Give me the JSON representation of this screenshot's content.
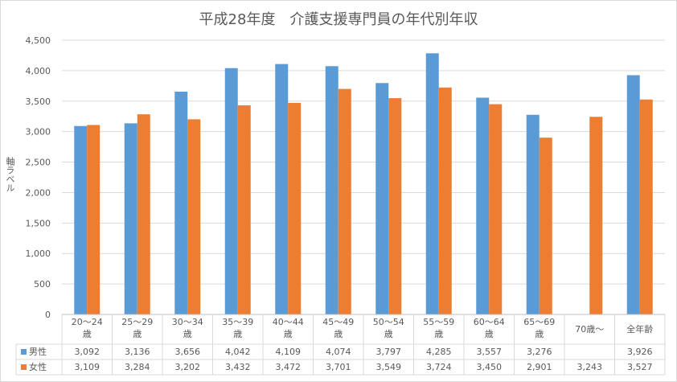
{
  "chart_data": {
    "type": "bar",
    "title": "平成28年度　介護支援専門員の年代別年収",
    "ylabel": "軸ラベル",
    "xlabel": "",
    "ylim": [
      0,
      4500
    ],
    "yticks": [
      "0",
      "500",
      "1,000",
      "1,500",
      "2,000",
      "2,500",
      "3,000",
      "3,500",
      "4,000",
      "4,500"
    ],
    "grid": true,
    "legend": "data-table",
    "categories": [
      [
        "20～24",
        "歳"
      ],
      [
        "25～29",
        "歳"
      ],
      [
        "30～34",
        "歳"
      ],
      [
        "35～39",
        "歳"
      ],
      [
        "40～44",
        "歳"
      ],
      [
        "45～49",
        "歳"
      ],
      [
        "50～54",
        "歳"
      ],
      [
        "55～59",
        "歳"
      ],
      [
        "60～64",
        "歳"
      ],
      [
        "65～69",
        "歳"
      ],
      [
        "70歳～"
      ],
      [
        "全年齢"
      ]
    ],
    "series": [
      {
        "name": "男性",
        "color": "#5b9bd5",
        "values": [
          3092,
          3136,
          3656,
          4042,
          4109,
          4074,
          3797,
          4285,
          3557,
          3276,
          null,
          3926
        ],
        "labels": [
          "3,092",
          "3,136",
          "3,656",
          "4,042",
          "4,109",
          "4,074",
          "3,797",
          "4,285",
          "3,557",
          "3,276",
          "",
          "3,926"
        ]
      },
      {
        "name": "女性",
        "color": "#ed7d31",
        "values": [
          3109,
          3284,
          3202,
          3432,
          3472,
          3701,
          3549,
          3724,
          3450,
          2901,
          3243,
          3527
        ],
        "labels": [
          "3,109",
          "3,284",
          "3,202",
          "3,432",
          "3,472",
          "3,701",
          "3,549",
          "3,724",
          "3,450",
          "2,901",
          "3,243",
          "3,527"
        ]
      }
    ]
  }
}
